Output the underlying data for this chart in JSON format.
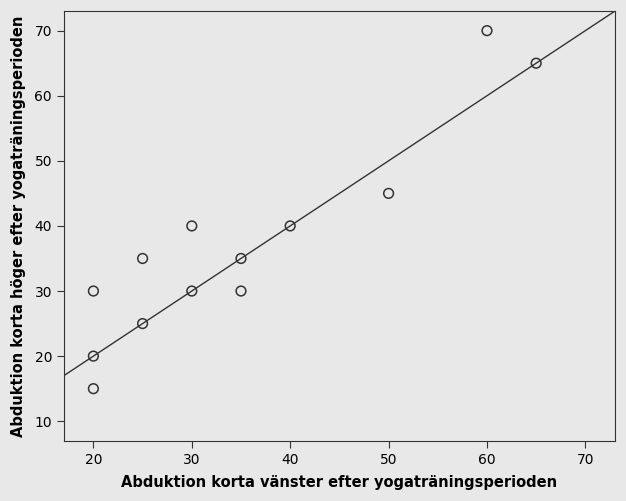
{
  "x": [
    20,
    20,
    20,
    25,
    25,
    30,
    30,
    35,
    35,
    40,
    50,
    60,
    65
  ],
  "y": [
    30,
    20,
    15,
    35,
    25,
    40,
    30,
    35,
    30,
    40,
    45,
    70,
    65
  ],
  "xlabel": "Abduktion korta vänster efter yogaträningsperioden",
  "ylabel": "Abduktion korta höger efter yogaträningsperioden",
  "xlim": [
    17,
    73
  ],
  "ylim": [
    7,
    73
  ],
  "xticks": [
    20,
    30,
    40,
    50,
    60,
    70
  ],
  "yticks": [
    10,
    20,
    30,
    40,
    50,
    60,
    70
  ],
  "marker_facecolor": "none",
  "marker_edgecolor": "#333333",
  "marker_size": 7,
  "line_color": "#333333",
  "bg_color": "#e8e8e8",
  "spine_color": "#333333",
  "xlabel_fontsize": 10.5,
  "ylabel_fontsize": 10.5,
  "tick_fontsize": 10
}
